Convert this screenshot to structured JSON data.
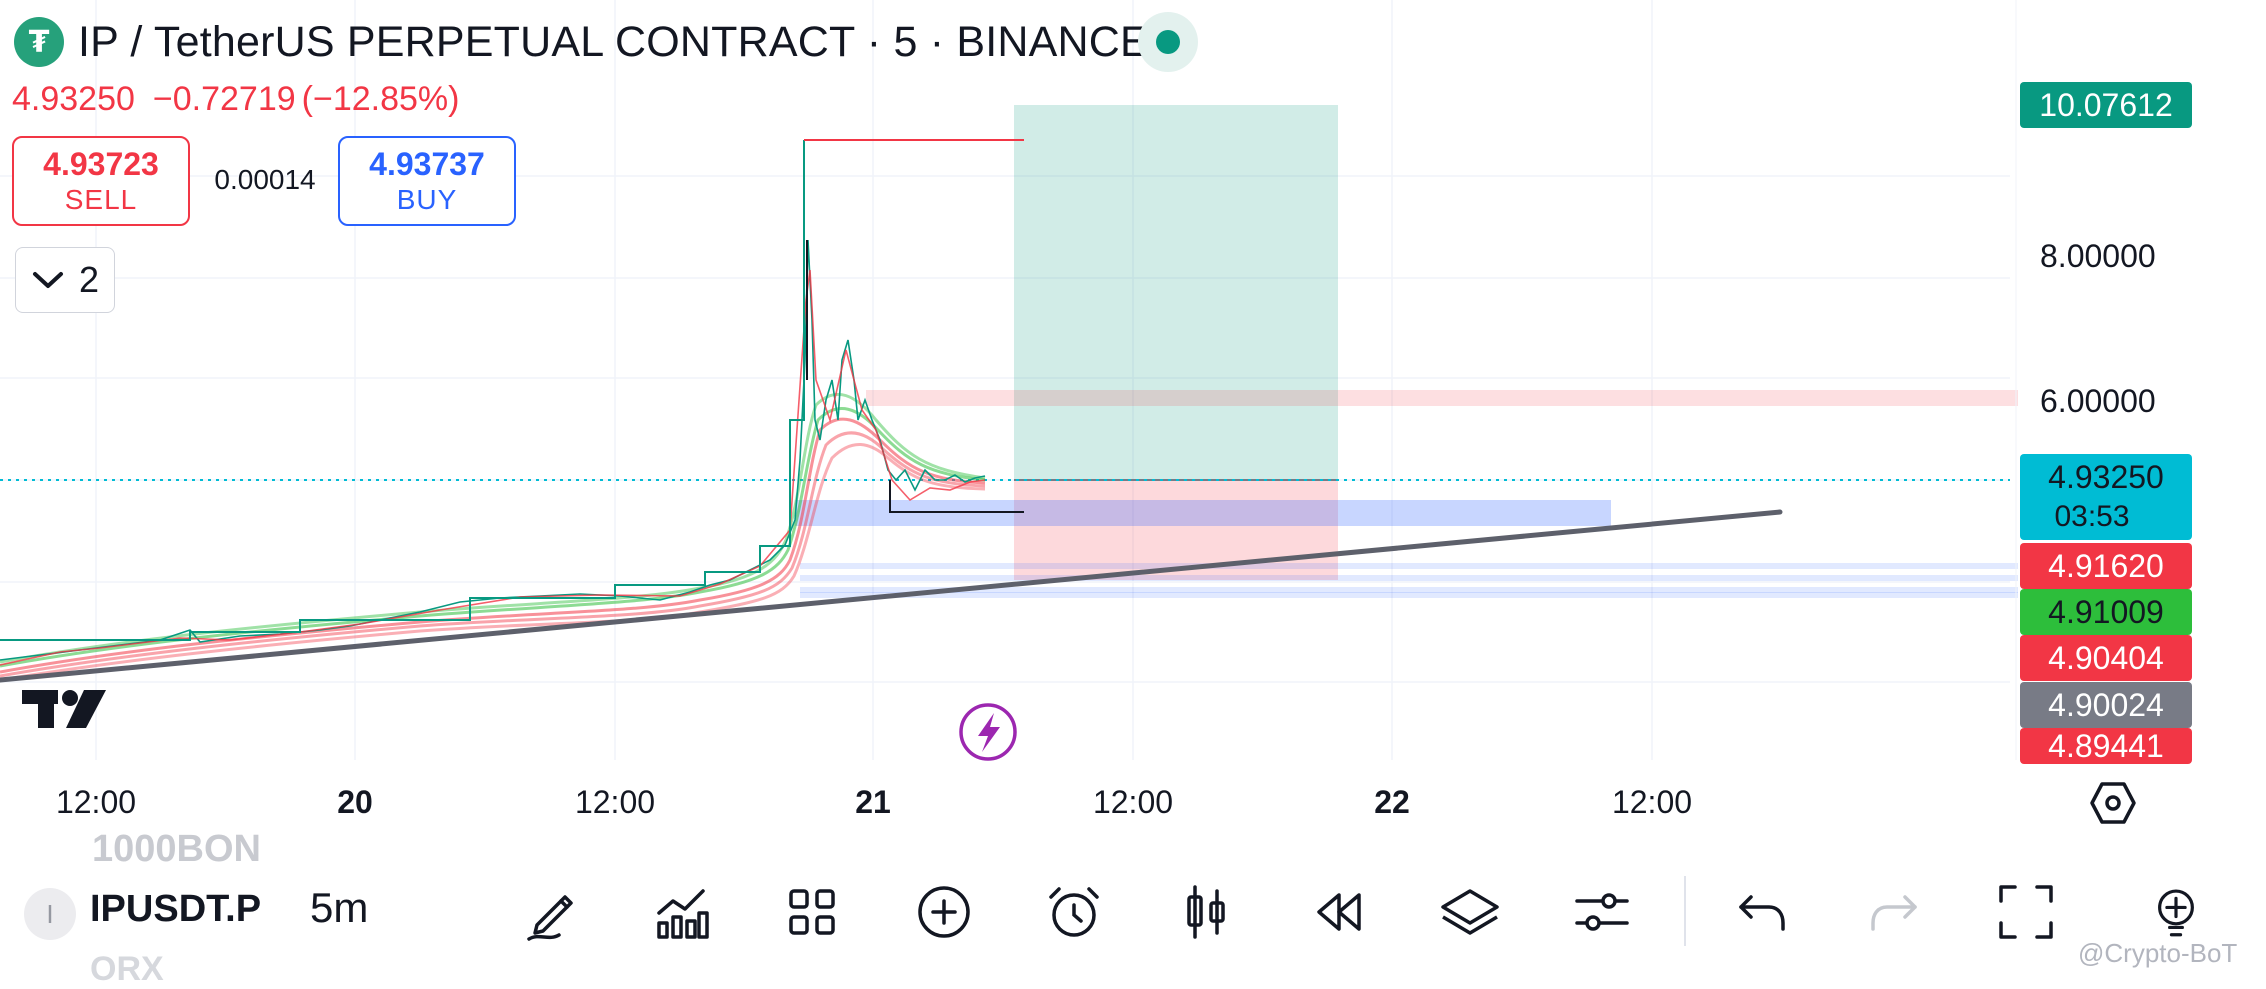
{
  "header": {
    "logo_icon": "tether-icon",
    "title": "IP / TetherUS PERPETUAL CONTRACT · 5 · BINANCE",
    "last_price": "4.93250",
    "change": "−0.72719",
    "change_pct": "(−12.85%)"
  },
  "trade": {
    "sell_price": "4.93723",
    "sell_label": "SELL",
    "spread": "0.00014",
    "buy_price": "4.93737",
    "buy_label": "BUY"
  },
  "indicators_toggle": {
    "count": "2"
  },
  "price_scale": {
    "ticks": [
      "8.00000",
      "6.00000"
    ],
    "target_label": "10.07612",
    "last_price": "4.93250",
    "countdown": "03:53",
    "levels": [
      {
        "value": "4.91620",
        "color": "#f23645"
      },
      {
        "value": "4.91009",
        "color": "#2dbe3b"
      },
      {
        "value": "4.90404",
        "color": "#f23645"
      },
      {
        "value": "4.90024",
        "color": "#787b86"
      },
      {
        "value": "4.89441",
        "color": "#f23645"
      }
    ]
  },
  "time_axis": {
    "labels": [
      "12:00",
      "20",
      "12:00",
      "21",
      "12:00",
      "22",
      "12:00"
    ]
  },
  "colors": {
    "accent_green": "#089981",
    "sell_red": "#f23645",
    "buy_blue": "#2962ff",
    "last_price_cyan": "#00bcd4"
  },
  "toolbar": {
    "symbol": "IPUSDT.P",
    "ghost_top": "1000BON",
    "ghost_bottom": "ORX",
    "interval": "5m",
    "tools": [
      "pencil-icon",
      "indicators-icon",
      "grid-icon",
      "add-circle-icon",
      "alarm-icon",
      "candles-icon",
      "replay-icon",
      "layers-icon",
      "settings-sliders-icon",
      "undo-icon",
      "redo-icon",
      "fullscreen-icon",
      "zoom-icon"
    ]
  },
  "watermark": "@Crypto-BoT"
}
